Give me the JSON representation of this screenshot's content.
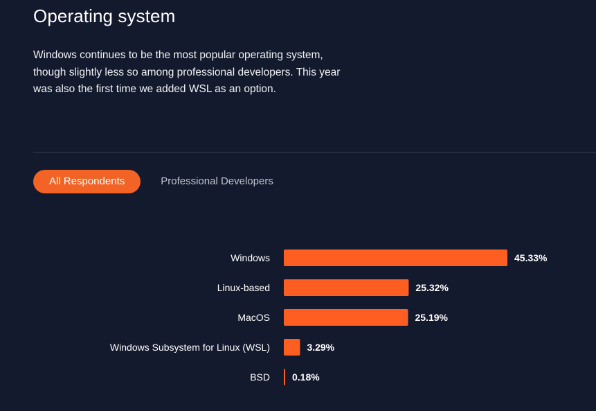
{
  "header": {
    "title": "Operating system",
    "description": "Windows continues to be the most popular operating system, though slightly less so among professional developers. This year was also the first time we added WSL as an option."
  },
  "tabs": [
    {
      "label": "All Respondents",
      "active": true
    },
    {
      "label": "Professional Developers",
      "active": false
    }
  ],
  "colors": {
    "background": "#141a2e",
    "accent": "#f26325",
    "bar": "#fe5e22",
    "divider": "#3a4055",
    "muted_text": "#c0c4cd"
  },
  "chart_data": {
    "type": "bar",
    "orientation": "horizontal",
    "categories": [
      "Windows",
      "Linux-based",
      "MacOS",
      "Windows Subsystem for Linux (WSL)",
      "BSD"
    ],
    "values": [
      45.33,
      25.32,
      25.19,
      3.29,
      0.18
    ],
    "value_labels": [
      "45.33%",
      "25.32%",
      "25.19%",
      "3.29%",
      "0.18%"
    ],
    "title": "",
    "xlabel": "",
    "ylabel": "",
    "xlim": [
      0,
      45.33
    ],
    "grid": false,
    "legend": "none"
  }
}
